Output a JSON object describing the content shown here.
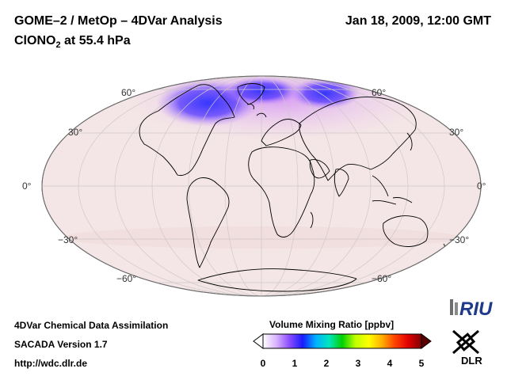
{
  "header": {
    "title": "GOME–2 / MetOp – 4DVar Analysis",
    "species": "ClONO",
    "species_sub": "2",
    "species_suffix": " at 55.4 hPa",
    "datetime": "Jan 18, 2009, 12:00 GMT"
  },
  "map": {
    "projection": "mollweide",
    "lat_labels": {
      "n60_left": "60°",
      "n60_right": "60°",
      "n30_left": "30°",
      "n30_right": "30°",
      "eq_left": "0°",
      "eq_right": "0°",
      "s30_left": "−30°",
      "s30_right": "−30°",
      "s60_left": "−60°",
      "s60_right": "−60°"
    },
    "colors": {
      "background": "#f5e8e8",
      "low": "#3a3cff",
      "mid": "#b14dff",
      "grid": "#c7c2c2",
      "coast": "#000000"
    }
  },
  "footer": {
    "line1": "4DVar Chemical Data Assimilation",
    "line2": "SACADA Version 1.7",
    "line3": "http://wdc.dlr.de"
  },
  "colorbar": {
    "title": "Volume Mixing Ratio [ppbv]",
    "min": 0,
    "max": 5,
    "ticks": [
      "0",
      "1",
      "2",
      "3",
      "4",
      "5"
    ],
    "stops": [
      "#ffffff",
      "#d9b3ff",
      "#8c4dff",
      "#1a1aff",
      "#00b0ff",
      "#00e6c0",
      "#00d000",
      "#c0ff00",
      "#ffff00",
      "#ffb000",
      "#ff4000",
      "#e00000",
      "#800000"
    ]
  },
  "logos": {
    "riu": "RIU",
    "dlr": "DLR"
  }
}
